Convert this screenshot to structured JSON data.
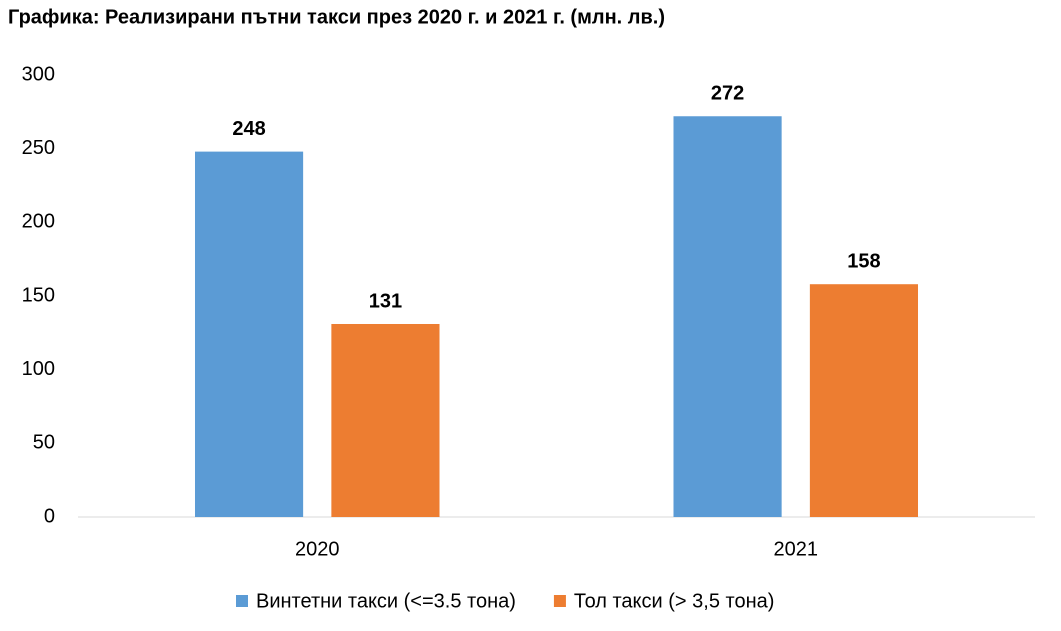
{
  "chart_data": {
    "type": "bar",
    "title": "Графика: Реализирани пътни такси през 2020 г. и 2021 г. (млн. лв.)",
    "categories": [
      "2020",
      "2021"
    ],
    "series": [
      {
        "name": "Винтетни такси (<=3.5 тона)",
        "color": "#5b9bd5",
        "values": [
          248,
          272
        ]
      },
      {
        "name": "Тол такси (> 3,5 тона)",
        "color": "#ed7d31",
        "values": [
          131,
          158
        ]
      }
    ],
    "ylim": [
      0,
      300
    ],
    "yticks": [
      0,
      50,
      100,
      150,
      200,
      250,
      300
    ],
    "grid": false,
    "legend": "bottom",
    "data_labels": true
  }
}
